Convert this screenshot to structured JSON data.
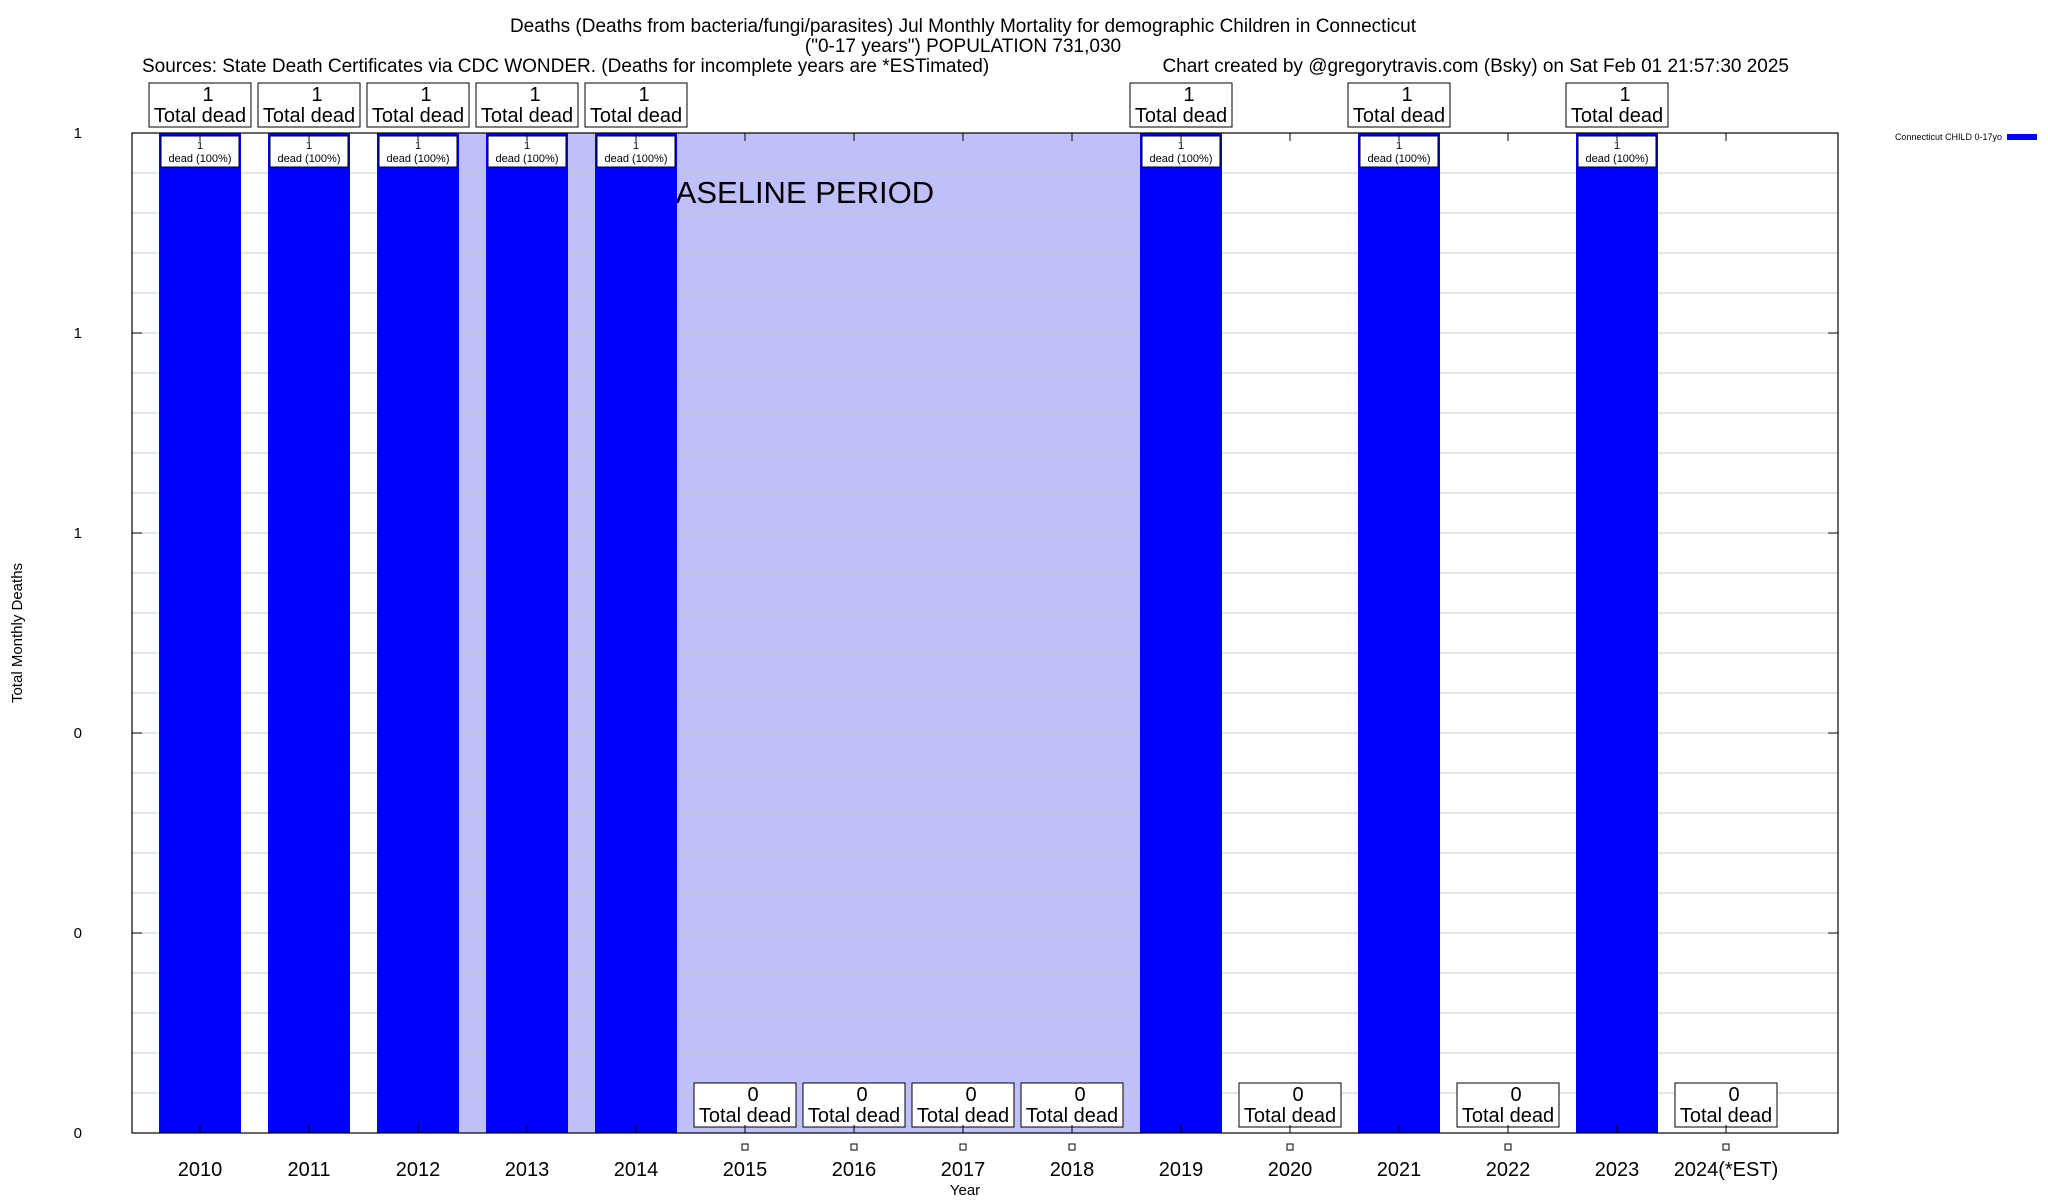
{
  "chart_data": {
    "type": "bar",
    "title_lines": [
      "Deaths (Deaths from bacteria/fungi/parasites) Jul Monthly Mortality for demographic Children in Connecticut",
      "(\"0-17 years\") POPULATION 731,030"
    ],
    "source_text": "Sources: State Death Certificates via CDC WONDER. (Deaths for incomplete years are *ESTimated)",
    "credit_text": "Chart created by @gregorytravis.com (Bsky) on Sat Feb 01 21:57:30 2025",
    "xlabel": "Year",
    "ylabel": "Total Monthly Deaths",
    "ylim": [
      0,
      1
    ],
    "y_tick_values": [
      0,
      0.2,
      0.4,
      0.6,
      0.8,
      1.0
    ],
    "y_tick_labels": [
      "0",
      "0",
      "0",
      "1",
      "1",
      "1"
    ],
    "categories": [
      "2010",
      "2011",
      "2012",
      "2013",
      "2014",
      "2015",
      "2016",
      "2017",
      "2018",
      "2019",
      "2020",
      "2021",
      "2022",
      "2023",
      "2024(*EST)"
    ],
    "series": [
      {
        "name": "Connecticut CHILD 0-17yo",
        "color": "#0000ff",
        "values": [
          1,
          1,
          1,
          1,
          1,
          0,
          0,
          0,
          0,
          1,
          0,
          1,
          0,
          1,
          0
        ],
        "bar_labels": [
          "1\ndead (100%)",
          "1\ndead (100%)",
          "1\ndead (100%)",
          "1\ndead (100%)",
          "1\ndead (100%)",
          "",
          "",
          "",
          "",
          "1\ndead (100%)",
          "",
          "1\ndead (100%)",
          "",
          "1\ndead (100%)",
          ""
        ]
      }
    ],
    "total_labels": [
      "1\nTotal dead",
      "1\nTotal dead",
      "1\nTotal dead",
      "1\nTotal dead",
      "1\nTotal dead",
      "0\nTotal dead",
      "0\nTotal dead",
      "0\nTotal dead",
      "0\nTotal dead",
      "1\nTotal dead",
      "0\nTotal dead",
      "1\nTotal dead",
      "0\nTotal dead",
      "1\nTotal dead",
      "0\nTotal dead"
    ],
    "baseline": {
      "label": "BASELINE PERIOD",
      "start_category": "2012",
      "end_category": "2019",
      "color": "#bfbff9"
    },
    "legend_position": "top-right",
    "grid": true
  }
}
